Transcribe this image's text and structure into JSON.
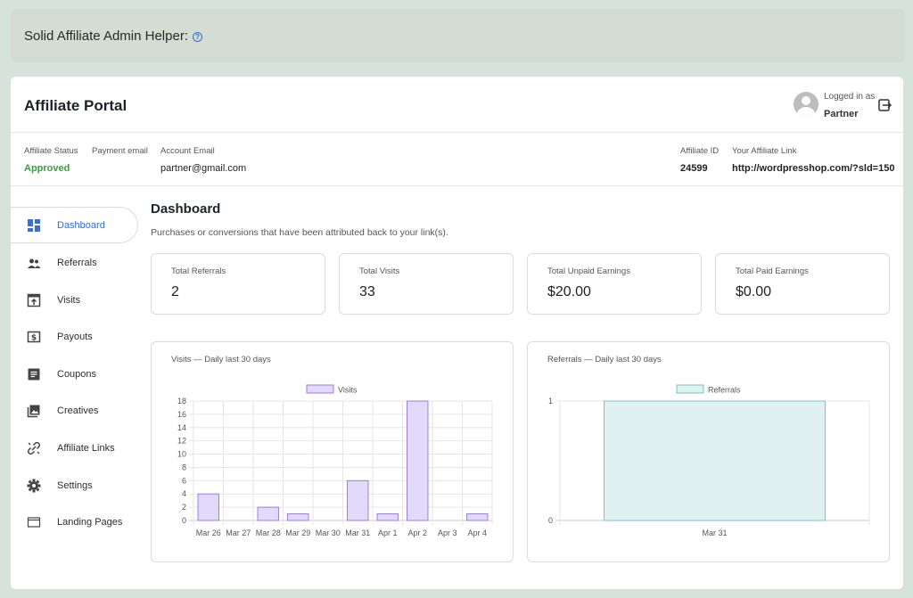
{
  "helper": {
    "title": "Solid Affiliate Admin Helper:",
    "help_icon": "question-circle-icon"
  },
  "header": {
    "title": "Affiliate Portal",
    "logged_in_label": "Logged in as",
    "username": "Partner",
    "logout_icon": "logout-icon"
  },
  "info": {
    "status_label": "Affiliate Status",
    "status_value": "Approved",
    "payment_email_label": "Payment email",
    "account_email_label": "Account Email",
    "account_email_value": "partner@gmail.com",
    "affiliate_id_label": "Affiliate ID",
    "affiliate_id_value": "24599",
    "link_label": "Your Affiliate Link",
    "link_value": "http://wordpresshop.com/?sld=150"
  },
  "sidebar": {
    "items": [
      {
        "label": "Dashboard",
        "icon": "dashboard-icon",
        "active": true
      },
      {
        "label": "Referrals",
        "icon": "people-icon"
      },
      {
        "label": "Visits",
        "icon": "visit-icon"
      },
      {
        "label": "Payouts",
        "icon": "dollar-icon"
      },
      {
        "label": "Coupons",
        "icon": "coupon-icon"
      },
      {
        "label": "Creatives",
        "icon": "image-icon"
      },
      {
        "label": "Affiliate Links",
        "icon": "link-icon"
      },
      {
        "label": "Settings",
        "icon": "gear-icon"
      },
      {
        "label": "Landing Pages",
        "icon": "window-icon"
      }
    ]
  },
  "main": {
    "title": "Dashboard",
    "subtitle": "Purchases or conversions that have been attributed back to your link(s).",
    "cards": [
      {
        "label": "Total Referrals",
        "value": "2"
      },
      {
        "label": "Total Visits",
        "value": "33"
      },
      {
        "label": "Total Unpaid Earnings",
        "value": "$20.00"
      },
      {
        "label": "Total Paid Earnings",
        "value": "$0.00"
      }
    ]
  },
  "chart_data": [
    {
      "type": "bar",
      "title": "Visits — Daily last 30 days",
      "categories": [
        "Mar 26",
        "Mar 27",
        "Mar 28",
        "Mar 29",
        "Mar 30",
        "Mar 31",
        "Apr 1",
        "Apr 2",
        "Apr 3",
        "Apr 4"
      ],
      "series": [
        {
          "name": "Visits",
          "values": [
            4,
            0,
            2,
            1,
            0,
            6,
            1,
            18,
            0,
            1
          ]
        }
      ],
      "ylim": [
        0,
        18
      ],
      "yticks": [
        0,
        2,
        4,
        6,
        8,
        10,
        12,
        14,
        16,
        18
      ],
      "grid": true,
      "legend": "top-center",
      "color_fill": "#e2d9fb",
      "color_stroke": "#9b7fe0"
    },
    {
      "type": "bar",
      "title": "Referrals — Daily last 30 days",
      "categories": [
        "Mar 31"
      ],
      "series": [
        {
          "name": "Referrals",
          "values": [
            1
          ]
        }
      ],
      "ylim": [
        0,
        1
      ],
      "yticks": [
        0,
        1
      ],
      "grid": false,
      "legend": "top-center",
      "color_fill": "#dff1f0",
      "color_stroke": "#77c3c0"
    }
  ]
}
